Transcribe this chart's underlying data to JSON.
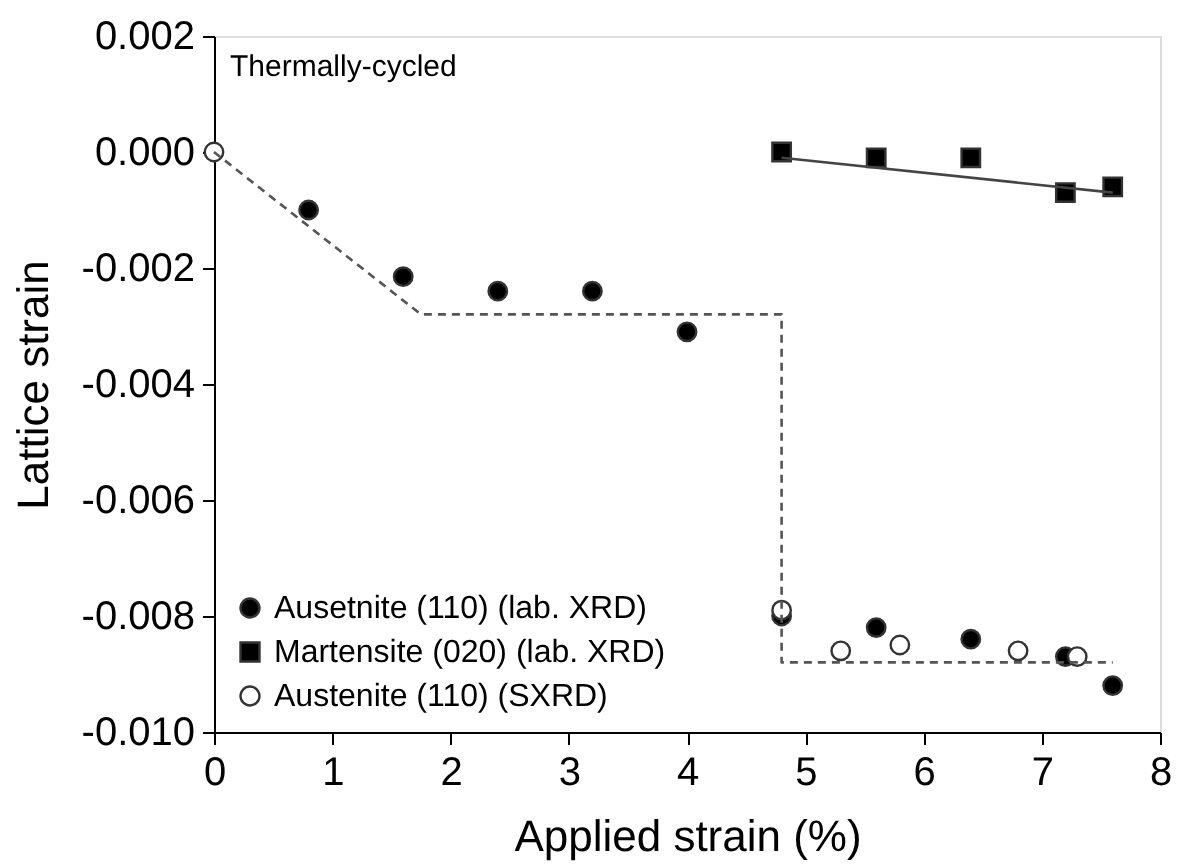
{
  "chart_data": {
    "type": "scatter",
    "xlabel": "Applied strain (%)",
    "ylabel": "Lattice strain",
    "annotations": [
      "Thermally-cycled"
    ],
    "xlim": [
      0,
      8
    ],
    "xticks": [
      0,
      1,
      2,
      3,
      4,
      5,
      6,
      7,
      8
    ],
    "ylim": [
      -0.01,
      0.002
    ],
    "yticks": [
      {
        "value": -0.01,
        "label": "-0.010"
      },
      {
        "value": -0.008,
        "label": "-0.008"
      },
      {
        "value": -0.006,
        "label": "-0.006"
      },
      {
        "value": -0.004,
        "label": "-0.004"
      },
      {
        "value": -0.002,
        "label": "-0.002"
      },
      {
        "value": 0.0,
        "label": "0.000"
      },
      {
        "value": 0.002,
        "label": "0.002"
      }
    ],
    "grid": false,
    "legend": "bottom left",
    "series": [
      {
        "name": "Ausetnite (110) (lab. XRD)",
        "marker": "circle",
        "color": "#000000",
        "x": [
          0.8,
          1.6,
          2.4,
          3.2,
          4.0,
          4.8,
          5.6,
          6.4,
          7.2,
          7.6
        ],
        "values": [
          -0.001,
          -0.00215,
          -0.0024,
          -0.0024,
          -0.0031,
          -0.008,
          -0.0082,
          -0.0084,
          -0.0087,
          -0.0092
        ]
      },
      {
        "name": "Martensite (020) (lab. XRD)",
        "marker": "square",
        "color": "#000000",
        "x": [
          4.8,
          5.6,
          6.4,
          7.2,
          7.6
        ],
        "values": [
          0.0,
          -0.0001,
          -0.0001,
          -0.0007,
          -0.0006
        ]
      },
      {
        "name": "Austenite (110) (SXRD)",
        "marker": "circle",
        "color": "#ffffff",
        "x": [
          0.0,
          4.8,
          5.3,
          5.8,
          6.8,
          7.3
        ],
        "values": [
          0.0,
          -0.0079,
          -0.0086,
          -0.0085,
          -0.0086,
          -0.0087
        ]
      },
      {
        "type": "line",
        "line_style": "solid",
        "color": "#444444",
        "x": [
          4.8,
          7.6
        ],
        "values": [
          -0.0001,
          -0.0007
        ]
      },
      {
        "type": "line",
        "line_style": "dashed",
        "color": "#555555",
        "x": [
          0.0,
          1.75,
          4.8,
          4.8,
          7.6
        ],
        "values": [
          0.0,
          -0.0028,
          -0.0028,
          -0.0088,
          -0.0088
        ]
      }
    ]
  }
}
